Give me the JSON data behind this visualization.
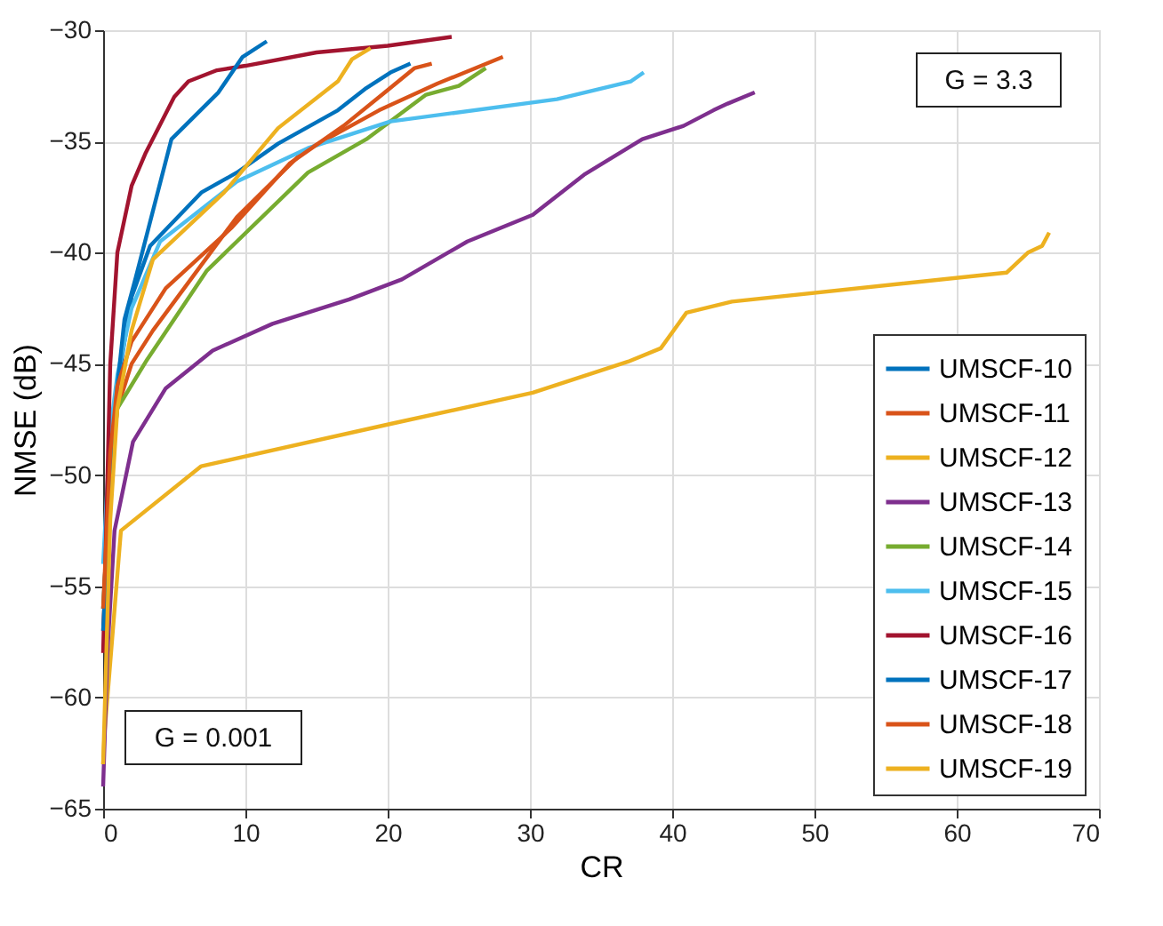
{
  "chart_data": {
    "type": "line",
    "xlabel": "CR",
    "ylabel": "NMSE (dB)",
    "xlim": [
      0,
      70
    ],
    "ylim": [
      -65,
      -30
    ],
    "xticks": [
      0,
      10,
      20,
      30,
      40,
      50,
      60,
      70
    ],
    "yticks": [
      -65,
      -60,
      -55,
      -50,
      -45,
      -40,
      -35,
      -30
    ],
    "grid": true,
    "legend": "bottom right",
    "line_style": "solid",
    "marker": "none",
    "annotations": [
      "G = 3.3",
      "G = 0.001"
    ],
    "series": [
      {
        "name": "UMSCF-10",
        "color": "#0072bd",
        "x": [
          0,
          0.5,
          1,
          2,
          3.3,
          6.9,
          9.4,
          12.3,
          16.5,
          18.5,
          20.2,
          21.6
        ],
        "values": [
          -56,
          -50,
          -46,
          -42,
          -39.7,
          -37.3,
          -36.4,
          -35.1,
          -33.6,
          -32.6,
          -31.9,
          -31.5
        ]
      },
      {
        "name": "UMSCF-11",
        "color": "#d95319",
        "x": [
          0,
          0.5,
          1,
          2,
          3.5,
          9.4,
          14,
          19.4,
          23.5,
          28.1
        ],
        "values": [
          -57,
          -50,
          -47,
          -45,
          -43.5,
          -38.4,
          -35.5,
          -33.6,
          -32.4,
          -31.2
        ]
      },
      {
        "name": "UMSCF-12",
        "color": "#edb120",
        "x": [
          0,
          0.1,
          1.25,
          6.9,
          20.2,
          30.2,
          36.9,
          39.2,
          41,
          44.2,
          63.5,
          65,
          66,
          66.5
        ],
        "values": [
          -63,
          -61.6,
          -52.5,
          -49.6,
          -47.7,
          -46.3,
          -44.9,
          -44.3,
          -42.7,
          -42.2,
          -40.9,
          -40,
          -39.7,
          -39.1
        ]
      },
      {
        "name": "UMSCF-13",
        "color": "#7e2f8e",
        "x": [
          0,
          0.3,
          0.8,
          2.1,
          4.4,
          7.7,
          11.9,
          17.3,
          21,
          25.6,
          30.2,
          33.8,
          37.9,
          40.8,
          42.9,
          43.9,
          45.8
        ],
        "values": [
          -64,
          -58,
          -52.5,
          -48.5,
          -46.1,
          -44.4,
          -43.2,
          -42.1,
          -41.2,
          -39.5,
          -38.3,
          -36.5,
          -34.9,
          -34.3,
          -33.6,
          -33.3,
          -32.8
        ]
      },
      {
        "name": "UMSCF-14",
        "color": "#77ac30",
        "x": [
          0,
          0.5,
          1,
          3.1,
          7.3,
          14.4,
          18.5,
          22.7,
          25,
          26.9
        ],
        "values": [
          -56,
          -50,
          -47,
          -44.8,
          -40.8,
          -36.4,
          -34.9,
          -32.9,
          -32.5,
          -31.7
        ]
      },
      {
        "name": "UMSCF-15",
        "color": "#4dbeee",
        "x": [
          0,
          0.5,
          1,
          2,
          4,
          9.4,
          14.4,
          20.2,
          31.9,
          37.1,
          38
        ],
        "values": [
          -54,
          -48,
          -45.5,
          -42.5,
          -39.5,
          -36.8,
          -35.3,
          -34.1,
          -33.1,
          -32.3,
          -31.9
        ]
      },
      {
        "name": "UMSCF-16",
        "color": "#a2142f",
        "x": [
          0,
          0.5,
          1,
          2,
          3,
          5,
          6,
          8,
          10,
          15,
          20,
          24.5
        ],
        "values": [
          -58,
          -45,
          -40,
          -37,
          -35.5,
          -33,
          -32.3,
          -31.8,
          -31.6,
          -31,
          -30.7,
          -30.3
        ]
      },
      {
        "name": "UMSCF-17",
        "color": "#0072bd",
        "x": [
          0,
          0.5,
          1,
          1.5,
          2.3,
          4.8,
          8.1,
          9.8,
          11.5
        ],
        "values": [
          -57,
          -50,
          -46,
          -43,
          -41.1,
          -34.9,
          -32.8,
          -31.2,
          -30.5
        ]
      },
      {
        "name": "UMSCF-18",
        "color": "#d95319",
        "x": [
          0,
          0.5,
          1,
          2,
          4.4,
          9,
          13.1,
          16.9,
          19.8,
          21.9,
          23.1
        ],
        "values": [
          -56,
          -49,
          -46,
          -44,
          -41.6,
          -38.9,
          -36,
          -34.3,
          -32.8,
          -31.7,
          -31.5
        ]
      },
      {
        "name": "UMSCF-19",
        "color": "#edb120",
        "x": [
          0,
          0.5,
          1,
          2,
          3.5,
          8.5,
          10.2,
          12.3,
          16.5,
          17.5,
          18.8
        ],
        "values": [
          -63,
          -52,
          -47,
          -43.5,
          -40.3,
          -37.3,
          -36,
          -34.4,
          -32.3,
          -31.3,
          -30.8
        ]
      }
    ]
  }
}
